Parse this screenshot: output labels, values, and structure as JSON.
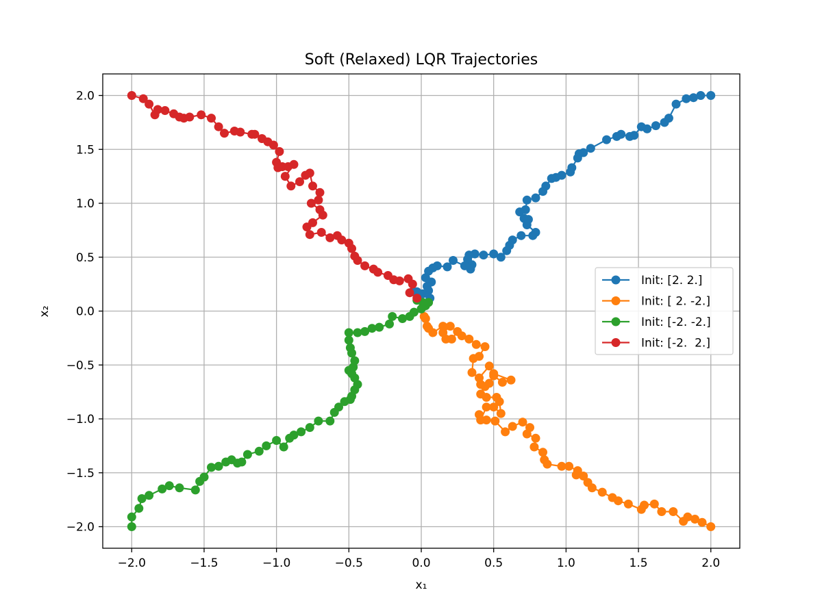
{
  "chart_data": {
    "type": "line",
    "title": "Soft (Relaxed) LQR Trajectories",
    "xlabel": "x₁",
    "ylabel": "x₂",
    "xlim": [
      -2.2,
      2.2
    ],
    "ylim": [
      -2.2,
      2.2
    ],
    "xticks": [
      -2.0,
      -1.5,
      -1.0,
      -0.5,
      0.0,
      0.5,
      1.0,
      1.5,
      2.0
    ],
    "yticks": [
      -2.0,
      -1.5,
      -1.0,
      -0.5,
      0.0,
      0.5,
      1.0,
      1.5,
      2.0
    ],
    "xtick_labels": [
      "−2.0",
      "−1.5",
      "−1.0",
      "−0.5",
      "0.0",
      "0.5",
      "1.0",
      "1.5",
      "2.0"
    ],
    "ytick_labels": [
      "−2.0",
      "−1.5",
      "−1.0",
      "−0.5",
      "0.0",
      "0.5",
      "1.0",
      "1.5",
      "2.0"
    ],
    "grid": true,
    "legend_position": "center-right",
    "markers": "circle",
    "series": [
      {
        "name": "Init: [2. 2.]",
        "color": "#1f77b4",
        "points": [
          [
            2.0,
            2.0
          ],
          [
            1.93,
            2.0
          ],
          [
            1.88,
            1.98
          ],
          [
            1.83,
            1.97
          ],
          [
            1.76,
            1.92
          ],
          [
            1.71,
            1.79
          ],
          [
            1.68,
            1.75
          ],
          [
            1.62,
            1.72
          ],
          [
            1.56,
            1.69
          ],
          [
            1.52,
            1.71
          ],
          [
            1.47,
            1.63
          ],
          [
            1.44,
            1.62
          ],
          [
            1.38,
            1.64
          ],
          [
            1.35,
            1.62
          ],
          [
            1.28,
            1.59
          ],
          [
            1.17,
            1.51
          ],
          [
            1.12,
            1.47
          ],
          [
            1.09,
            1.46
          ],
          [
            1.08,
            1.42
          ],
          [
            1.04,
            1.33
          ],
          [
            1.03,
            1.29
          ],
          [
            0.97,
            1.26
          ],
          [
            0.93,
            1.24
          ],
          [
            0.9,
            1.23
          ],
          [
            0.86,
            1.16
          ],
          [
            0.84,
            1.11
          ],
          [
            0.79,
            1.05
          ],
          [
            0.73,
            1.03
          ],
          [
            0.72,
            0.94
          ],
          [
            0.68,
            0.92
          ],
          [
            0.71,
            0.86
          ],
          [
            0.74,
            0.85
          ],
          [
            0.73,
            0.8
          ],
          [
            0.79,
            0.73
          ],
          [
            0.77,
            0.7
          ],
          [
            0.69,
            0.7
          ],
          [
            0.63,
            0.66
          ],
          [
            0.61,
            0.61
          ],
          [
            0.59,
            0.56
          ],
          [
            0.55,
            0.5
          ],
          [
            0.5,
            0.53
          ],
          [
            0.43,
            0.52
          ],
          [
            0.37,
            0.53
          ],
          [
            0.33,
            0.52
          ],
          [
            0.32,
            0.48
          ],
          [
            0.35,
            0.43
          ],
          [
            0.34,
            0.39
          ],
          [
            0.3,
            0.42
          ],
          [
            0.22,
            0.47
          ],
          [
            0.18,
            0.41
          ],
          [
            0.11,
            0.42
          ],
          [
            0.08,
            0.4
          ],
          [
            0.05,
            0.37
          ],
          [
            0.03,
            0.31
          ],
          [
            0.07,
            0.27
          ],
          [
            0.04,
            0.23
          ],
          [
            0.05,
            0.19
          ],
          [
            0.06,
            0.12
          ],
          [
            0.01,
            0.16
          ],
          [
            -0.03,
            0.18
          ],
          [
            -0.06,
            0.18
          ]
        ]
      },
      {
        "name": "Init: [ 2. -2.]",
        "color": "#ff7f0e",
        "points": [
          [
            2.0,
            -2.0
          ],
          [
            1.94,
            -1.96
          ],
          [
            1.89,
            -1.93
          ],
          [
            1.84,
            -1.91
          ],
          [
            1.81,
            -1.95
          ],
          [
            1.74,
            -1.86
          ],
          [
            1.66,
            -1.86
          ],
          [
            1.61,
            -1.79
          ],
          [
            1.54,
            -1.8
          ],
          [
            1.52,
            -1.84
          ],
          [
            1.43,
            -1.79
          ],
          [
            1.36,
            -1.76
          ],
          [
            1.32,
            -1.73
          ],
          [
            1.25,
            -1.68
          ],
          [
            1.18,
            -1.64
          ],
          [
            1.15,
            -1.59
          ],
          [
            1.12,
            -1.53
          ],
          [
            1.07,
            -1.52
          ],
          [
            1.08,
            -1.48
          ],
          [
            1.02,
            -1.44
          ],
          [
            0.97,
            -1.44
          ],
          [
            0.87,
            -1.42
          ],
          [
            0.85,
            -1.38
          ],
          [
            0.84,
            -1.31
          ],
          [
            0.78,
            -1.26
          ],
          [
            0.79,
            -1.18
          ],
          [
            0.73,
            -1.14
          ],
          [
            0.75,
            -1.08
          ],
          [
            0.7,
            -1.03
          ],
          [
            0.63,
            -1.07
          ],
          [
            0.58,
            -1.12
          ],
          [
            0.51,
            -1.02
          ],
          [
            0.45,
            -1.01
          ],
          [
            0.4,
            -0.96
          ],
          [
            0.41,
            -1.01
          ],
          [
            0.45,
            -0.89
          ],
          [
            0.5,
            -0.89
          ],
          [
            0.55,
            -0.95
          ],
          [
            0.54,
            -0.84
          ],
          [
            0.52,
            -0.8
          ],
          [
            0.45,
            -0.8
          ],
          [
            0.41,
            -0.77
          ],
          [
            0.44,
            -0.7
          ],
          [
            0.41,
            -0.68
          ],
          [
            0.47,
            -0.67
          ],
          [
            0.5,
            -0.6
          ],
          [
            0.56,
            -0.66
          ],
          [
            0.62,
            -0.64
          ],
          [
            0.5,
            -0.58
          ],
          [
            0.47,
            -0.51
          ],
          [
            0.4,
            -0.62
          ],
          [
            0.35,
            -0.57
          ],
          [
            0.36,
            -0.44
          ],
          [
            0.4,
            -0.42
          ],
          [
            0.44,
            -0.33
          ],
          [
            0.38,
            -0.31
          ],
          [
            0.33,
            -0.26
          ],
          [
            0.28,
            -0.23
          ],
          [
            0.25,
            -0.19
          ],
          [
            0.21,
            -0.26
          ],
          [
            0.17,
            -0.26
          ],
          [
            0.15,
            -0.2
          ],
          [
            0.2,
            -0.14
          ],
          [
            0.15,
            -0.14
          ],
          [
            0.08,
            -0.2
          ],
          [
            0.05,
            -0.16
          ],
          [
            0.04,
            -0.14
          ],
          [
            0.03,
            -0.07
          ],
          [
            0.02,
            -0.05
          ]
        ]
      },
      {
        "name": "Init: [-2. -2.]",
        "color": "#2ca02c",
        "points": [
          [
            -2.0,
            -2.0
          ],
          [
            -2.0,
            -1.91
          ],
          [
            -1.95,
            -1.83
          ],
          [
            -1.93,
            -1.74
          ],
          [
            -1.88,
            -1.71
          ],
          [
            -1.79,
            -1.65
          ],
          [
            -1.74,
            -1.62
          ],
          [
            -1.67,
            -1.64
          ],
          [
            -1.56,
            -1.66
          ],
          [
            -1.53,
            -1.58
          ],
          [
            -1.5,
            -1.54
          ],
          [
            -1.45,
            -1.45
          ],
          [
            -1.4,
            -1.44
          ],
          [
            -1.35,
            -1.4
          ],
          [
            -1.31,
            -1.38
          ],
          [
            -1.27,
            -1.41
          ],
          [
            -1.24,
            -1.4
          ],
          [
            -1.2,
            -1.33
          ],
          [
            -1.12,
            -1.3
          ],
          [
            -1.07,
            -1.25
          ],
          [
            -1.0,
            -1.2
          ],
          [
            -0.95,
            -1.26
          ],
          [
            -0.91,
            -1.18
          ],
          [
            -0.88,
            -1.15
          ],
          [
            -0.83,
            -1.12
          ],
          [
            -0.77,
            -1.08
          ],
          [
            -0.71,
            -1.02
          ],
          [
            -0.63,
            -1.02
          ],
          [
            -0.6,
            -0.94
          ],
          [
            -0.57,
            -0.89
          ],
          [
            -0.53,
            -0.84
          ],
          [
            -0.49,
            -0.82
          ],
          [
            -0.48,
            -0.79
          ],
          [
            -0.46,
            -0.73
          ],
          [
            -0.44,
            -0.68
          ],
          [
            -0.46,
            -0.62
          ],
          [
            -0.48,
            -0.58
          ],
          [
            -0.5,
            -0.55
          ],
          [
            -0.47,
            -0.52
          ],
          [
            -0.46,
            -0.46
          ],
          [
            -0.48,
            -0.39
          ],
          [
            -0.49,
            -0.34
          ],
          [
            -0.5,
            -0.27
          ],
          [
            -0.5,
            -0.2
          ],
          [
            -0.44,
            -0.2
          ],
          [
            -0.39,
            -0.19
          ],
          [
            -0.34,
            -0.16
          ],
          [
            -0.29,
            -0.15
          ],
          [
            -0.22,
            -0.12
          ],
          [
            -0.2,
            -0.05
          ],
          [
            -0.13,
            -0.07
          ],
          [
            -0.08,
            -0.05
          ],
          [
            -0.05,
            -0.01
          ],
          [
            0.0,
            0.02
          ],
          [
            0.03,
            0.05
          ],
          [
            0.05,
            0.08
          ],
          [
            0.01,
            0.08
          ],
          [
            -0.03,
            0.1
          ]
        ]
      },
      {
        "name": "Init: [-2.  2.]",
        "color": "#d62728",
        "points": [
          [
            -2.0,
            2.0
          ],
          [
            -1.92,
            1.97
          ],
          [
            -1.88,
            1.92
          ],
          [
            -1.84,
            1.82
          ],
          [
            -1.82,
            1.87
          ],
          [
            -1.77,
            1.86
          ],
          [
            -1.71,
            1.83
          ],
          [
            -1.67,
            1.8
          ],
          [
            -1.64,
            1.79
          ],
          [
            -1.6,
            1.8
          ],
          [
            -1.52,
            1.82
          ],
          [
            -1.45,
            1.79
          ],
          [
            -1.4,
            1.71
          ],
          [
            -1.36,
            1.65
          ],
          [
            -1.29,
            1.67
          ],
          [
            -1.25,
            1.66
          ],
          [
            -1.17,
            1.64
          ],
          [
            -1.15,
            1.64
          ],
          [
            -1.1,
            1.6
          ],
          [
            -1.06,
            1.57
          ],
          [
            -1.02,
            1.54
          ],
          [
            -0.98,
            1.48
          ],
          [
            -1.0,
            1.38
          ],
          [
            -0.96,
            1.34
          ],
          [
            -0.99,
            1.33
          ],
          [
            -0.92,
            1.34
          ],
          [
            -0.88,
            1.36
          ],
          [
            -0.94,
            1.25
          ],
          [
            -0.9,
            1.16
          ],
          [
            -0.84,
            1.2
          ],
          [
            -0.8,
            1.26
          ],
          [
            -0.77,
            1.28
          ],
          [
            -0.75,
            1.16
          ],
          [
            -0.7,
            1.1
          ],
          [
            -0.71,
            1.03
          ],
          [
            -0.76,
            1.0
          ],
          [
            -0.7,
            0.94
          ],
          [
            -0.68,
            0.89
          ],
          [
            -0.75,
            0.82
          ],
          [
            -0.79,
            0.78
          ],
          [
            -0.77,
            0.71
          ],
          [
            -0.69,
            0.73
          ],
          [
            -0.63,
            0.68
          ],
          [
            -0.58,
            0.7
          ],
          [
            -0.55,
            0.66
          ],
          [
            -0.5,
            0.63
          ],
          [
            -0.48,
            0.58
          ],
          [
            -0.46,
            0.51
          ],
          [
            -0.44,
            0.47
          ],
          [
            -0.39,
            0.42
          ],
          [
            -0.33,
            0.39
          ],
          [
            -0.3,
            0.36
          ],
          [
            -0.23,
            0.33
          ],
          [
            -0.19,
            0.29
          ],
          [
            -0.15,
            0.28
          ],
          [
            -0.09,
            0.3
          ],
          [
            -0.06,
            0.25
          ],
          [
            -0.08,
            0.17
          ],
          [
            -0.03,
            0.12
          ]
        ]
      }
    ]
  }
}
